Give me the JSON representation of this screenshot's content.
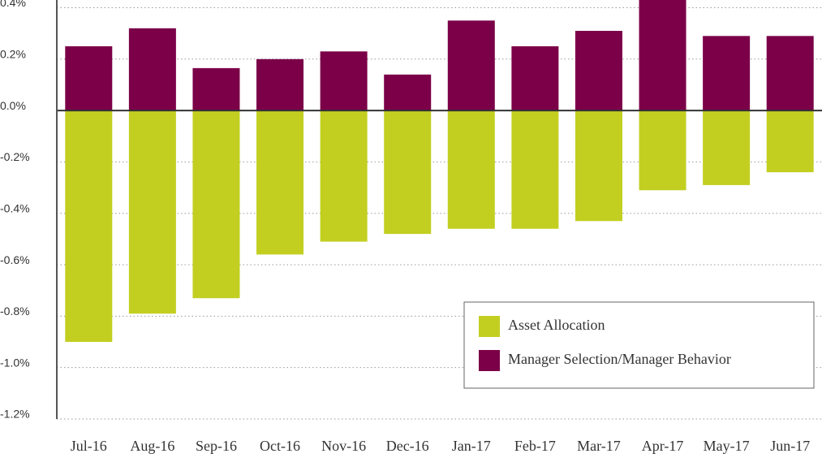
{
  "chart_data": {
    "type": "bar",
    "categories": [
      "Jul-16",
      "Aug-16",
      "Sep-16",
      "Oct-16",
      "Nov-16",
      "Dec-16",
      "Jan-17",
      "Feb-17",
      "Mar-17",
      "Apr-17",
      "May-17",
      "Jun-17"
    ],
    "series": [
      {
        "name": "Asset Allocation",
        "color": "#c2cf21",
        "values": [
          -0.9,
          -0.79,
          -0.73,
          -0.56,
          -0.51,
          -0.48,
          -0.46,
          -0.46,
          -0.43,
          -0.31,
          -0.29,
          -0.24
        ]
      },
      {
        "name": "Manager Selection/Manager Behavior",
        "color": "#7b0048",
        "values": [
          0.25,
          0.32,
          0.165,
          0.2,
          0.23,
          0.14,
          0.35,
          0.25,
          0.31,
          0.43,
          0.29,
          0.29
        ]
      }
    ],
    "ylim": [
      -1.2,
      0.43
    ],
    "yticks": [
      {
        "value": 0.4,
        "label": "0.4%"
      },
      {
        "value": 0.2,
        "label": "0.2%"
      },
      {
        "value": 0,
        "label": "0.0%"
      },
      {
        "value": -0.2,
        "label": "-0.2%"
      },
      {
        "value": -0.4,
        "label": "-0.4%"
      },
      {
        "value": -0.6,
        "label": "-0.6%"
      },
      {
        "value": -0.8,
        "label": "-0.8%"
      },
      {
        "value": -1.0,
        "label": "-1.0%"
      },
      {
        "value": -1.2,
        "label": "-1.2%"
      }
    ],
    "grid": true,
    "legend": "lower right"
  }
}
